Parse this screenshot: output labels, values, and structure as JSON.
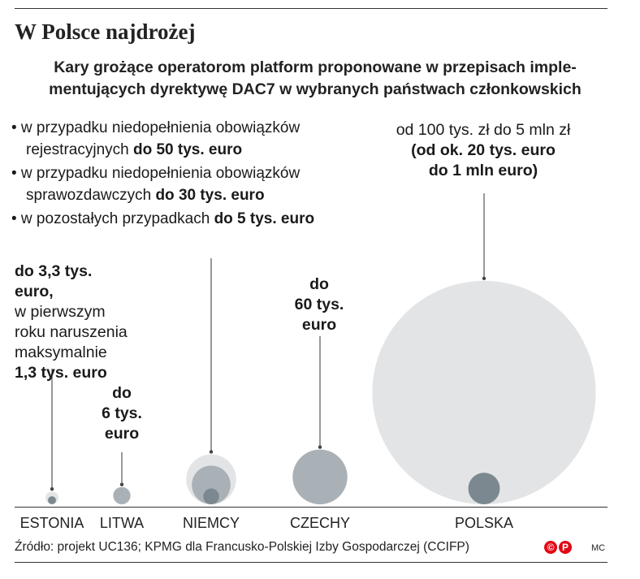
{
  "title": "W Polsce najdrożej",
  "subtitle_line1": "Kary grożące operatorom platform proponowane w przepisach imple-",
  "subtitle_line2": "mentujących dyrektywę DAC7 w wybranych państwach członkowskich",
  "notes": [
    {
      "l1": "• w przypadku niedopełnienia obowiązków",
      "l2_plain": "rejestracyjnych ",
      "l2_bold": "do 50 tys. euro"
    },
    {
      "l1": "• w przypadku niedopełnienia obowiązków",
      "l2_plain": "sprawozdawczych ",
      "l2_bold": "do 30 tys. euro"
    },
    {
      "l1_plain": "• w pozostałych przypadkach ",
      "l1_bold": "do 5 tys. euro"
    }
  ],
  "labels": {
    "estonia": {
      "b1": "do 3,3 tys. euro,",
      "p1": "w pierwszym",
      "p2": "roku naruszenia",
      "p3": "maksymalnie",
      "b2": "1,3 tys. euro"
    },
    "litwa": {
      "b1": "do",
      "b2": "6 tys.",
      "b3": "euro"
    },
    "czechy": {
      "b1": "do",
      "b2": "60 tys.",
      "b3": "euro"
    },
    "polska": {
      "p1": "od 100 tys. zł do 5 mln zł",
      "b1": "(od ok. 20 tys. euro",
      "b2": "do 1 mln euro)"
    }
  },
  "source": "Źródło: projekt UC136; KPMG dla Francusko-Polskiej Izby Gospodarczej (CCIFP)",
  "author": "MC",
  "logo_text": "©",
  "logo_p": "P",
  "chart_data": {
    "type": "bubble",
    "unit": "tys. euro",
    "categories": [
      "ESTONIA",
      "LITWA",
      "NIEMCY",
      "CZECHY",
      "POLSKA"
    ],
    "max_values": [
      3.3,
      6,
      50,
      60,
      1000
    ],
    "inner_values": [
      1.3,
      null,
      30,
      null,
      20
    ],
    "innermost_values": [
      null,
      null,
      5,
      null,
      null
    ],
    "colors": {
      "light": "#e2e4e6",
      "mid": "#a9b1b7",
      "dark": "#7c8890"
    }
  }
}
